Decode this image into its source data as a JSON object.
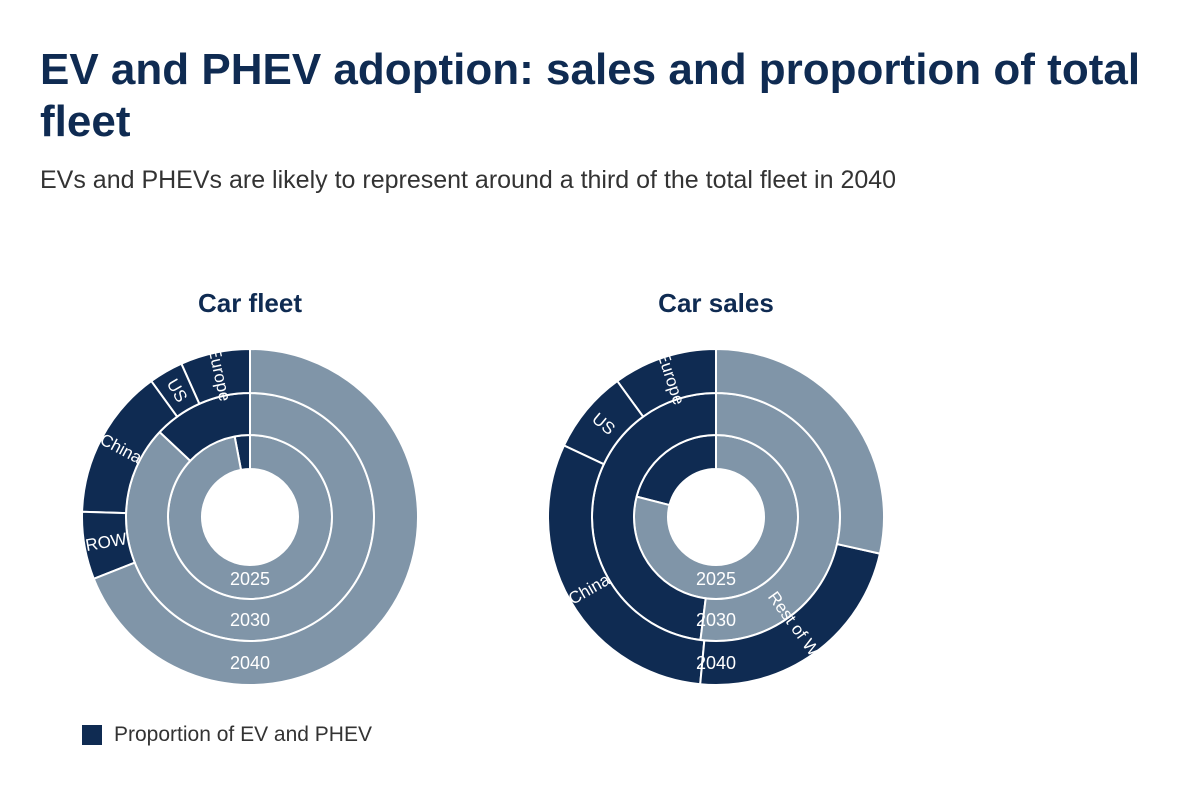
{
  "title": "EV and PHEV adoption: sales and proportion of total fleet",
  "subtitle": "EVs and PHEVs are likely to represent around a third of the total fleet in 2040",
  "colors": {
    "ev": "#0f2b52",
    "other": "#8095a8",
    "divider": "#ffffff"
  },
  "legend": {
    "label": "Proportion of EV and PHEV",
    "color": "#0f2b52"
  },
  "chart_data": [
    {
      "type": "sunburst",
      "title": "Car fleet",
      "note": "Share of total; each ring is a year. Dark = EV and PHEV, light = rest of fleet. Rings start at 12 o'clock and run counter-clockwise.",
      "rings": [
        {
          "year": "2025",
          "segments": [
            {
              "label": "",
              "value": 0.03,
              "ev": true
            },
            {
              "label": "",
              "value": 0.97,
              "ev": false
            }
          ]
        },
        {
          "year": "2030",
          "segments": [
            {
              "label": "",
              "value": 0.13,
              "ev": true
            },
            {
              "label": "",
              "value": 0.87,
              "ev": false
            }
          ]
        },
        {
          "year": "2040",
          "segments": [
            {
              "label": "Europe",
              "value": 0.067,
              "ev": true
            },
            {
              "label": "US",
              "value": 0.033,
              "ev": true
            },
            {
              "label": "China",
              "value": 0.145,
              "ev": true
            },
            {
              "label": "ROW",
              "value": 0.065,
              "ev": true
            },
            {
              "label": "",
              "value": 0.69,
              "ev": false
            }
          ]
        }
      ]
    },
    {
      "type": "sunburst",
      "title": "Car sales",
      "note": "Share of total; each ring is a year. Dark = EV and PHEV, light = other sales. Rings start at 12 o'clock and run counter-clockwise.",
      "rings": [
        {
          "year": "2025",
          "segments": [
            {
              "label": "",
              "value": 0.21,
              "ev": true
            },
            {
              "label": "",
              "value": 0.79,
              "ev": false
            }
          ]
        },
        {
          "year": "2030",
          "segments": [
            {
              "label": "",
              "value": 0.48,
              "ev": true
            },
            {
              "label": "",
              "value": 0.52,
              "ev": false
            }
          ]
        },
        {
          "year": "2040",
          "segments": [
            {
              "label": "Europe",
              "value": 0.1,
              "ev": true
            },
            {
              "label": "US",
              "value": 0.08,
              "ev": true
            },
            {
              "label": "China",
              "value": 0.305,
              "ev": true
            },
            {
              "label": "Rest of World",
              "value": 0.23,
              "ev": true
            },
            {
              "label": "",
              "value": 0.285,
              "ev": false
            }
          ]
        }
      ]
    }
  ]
}
